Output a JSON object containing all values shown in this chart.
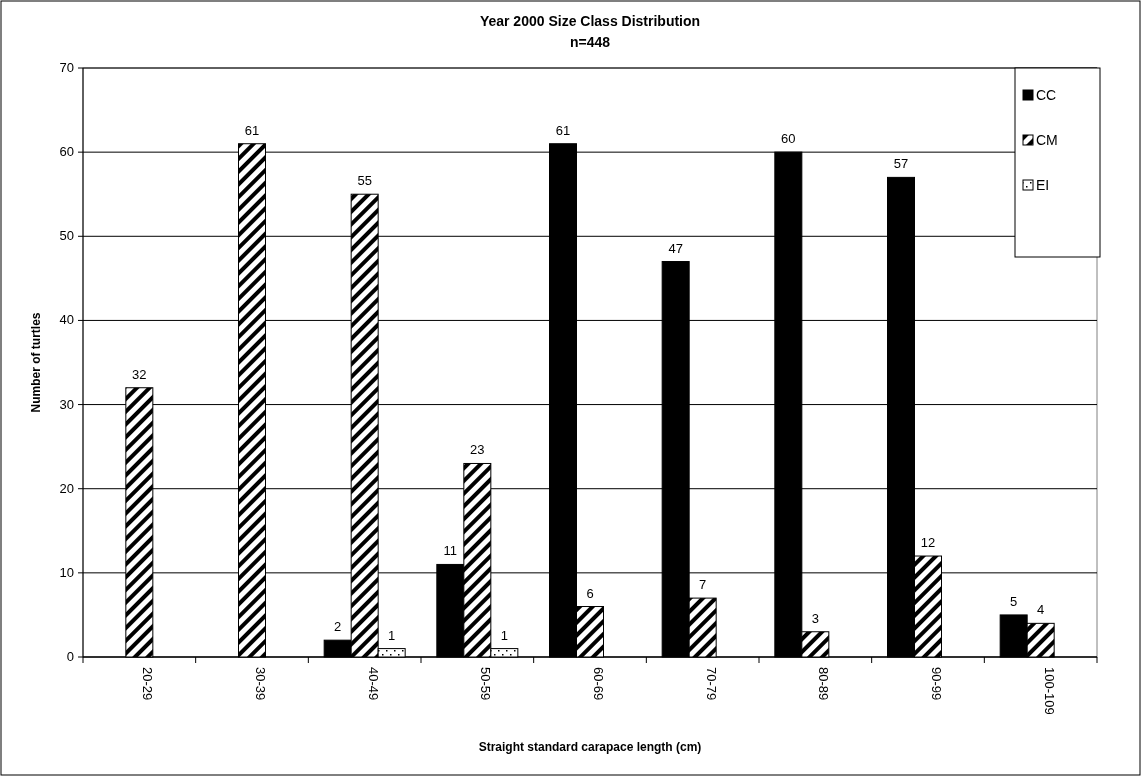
{
  "chart_data": {
    "type": "bar",
    "title": "Year 2000 Size Class Distribution",
    "subtitle": "n=448",
    "xlabel": "Straight standard carapace length (cm)",
    "ylabel": "Number of turtles",
    "categories": [
      "20-29",
      "30-39",
      "40-49",
      "50-59",
      "60-69",
      "70-79",
      "80-89",
      "90-99",
      "100-109"
    ],
    "series": [
      {
        "name": "CC",
        "color": "#000000",
        "values": [
          null,
          null,
          2,
          11,
          61,
          47,
          60,
          57,
          5
        ]
      },
      {
        "name": "CM",
        "color": "#000000",
        "values": [
          32,
          61,
          55,
          23,
          6,
          7,
          3,
          12,
          4
        ]
      },
      {
        "name": "EI",
        "color": "#000000",
        "values": [
          null,
          null,
          1,
          1,
          null,
          null,
          null,
          null,
          null
        ]
      }
    ],
    "ylim": [
      0,
      70
    ],
    "yticks": [
      0,
      10,
      20,
      30,
      40,
      50,
      60,
      70
    ],
    "grid": "y",
    "legend": "top right",
    "data_labels": true
  }
}
